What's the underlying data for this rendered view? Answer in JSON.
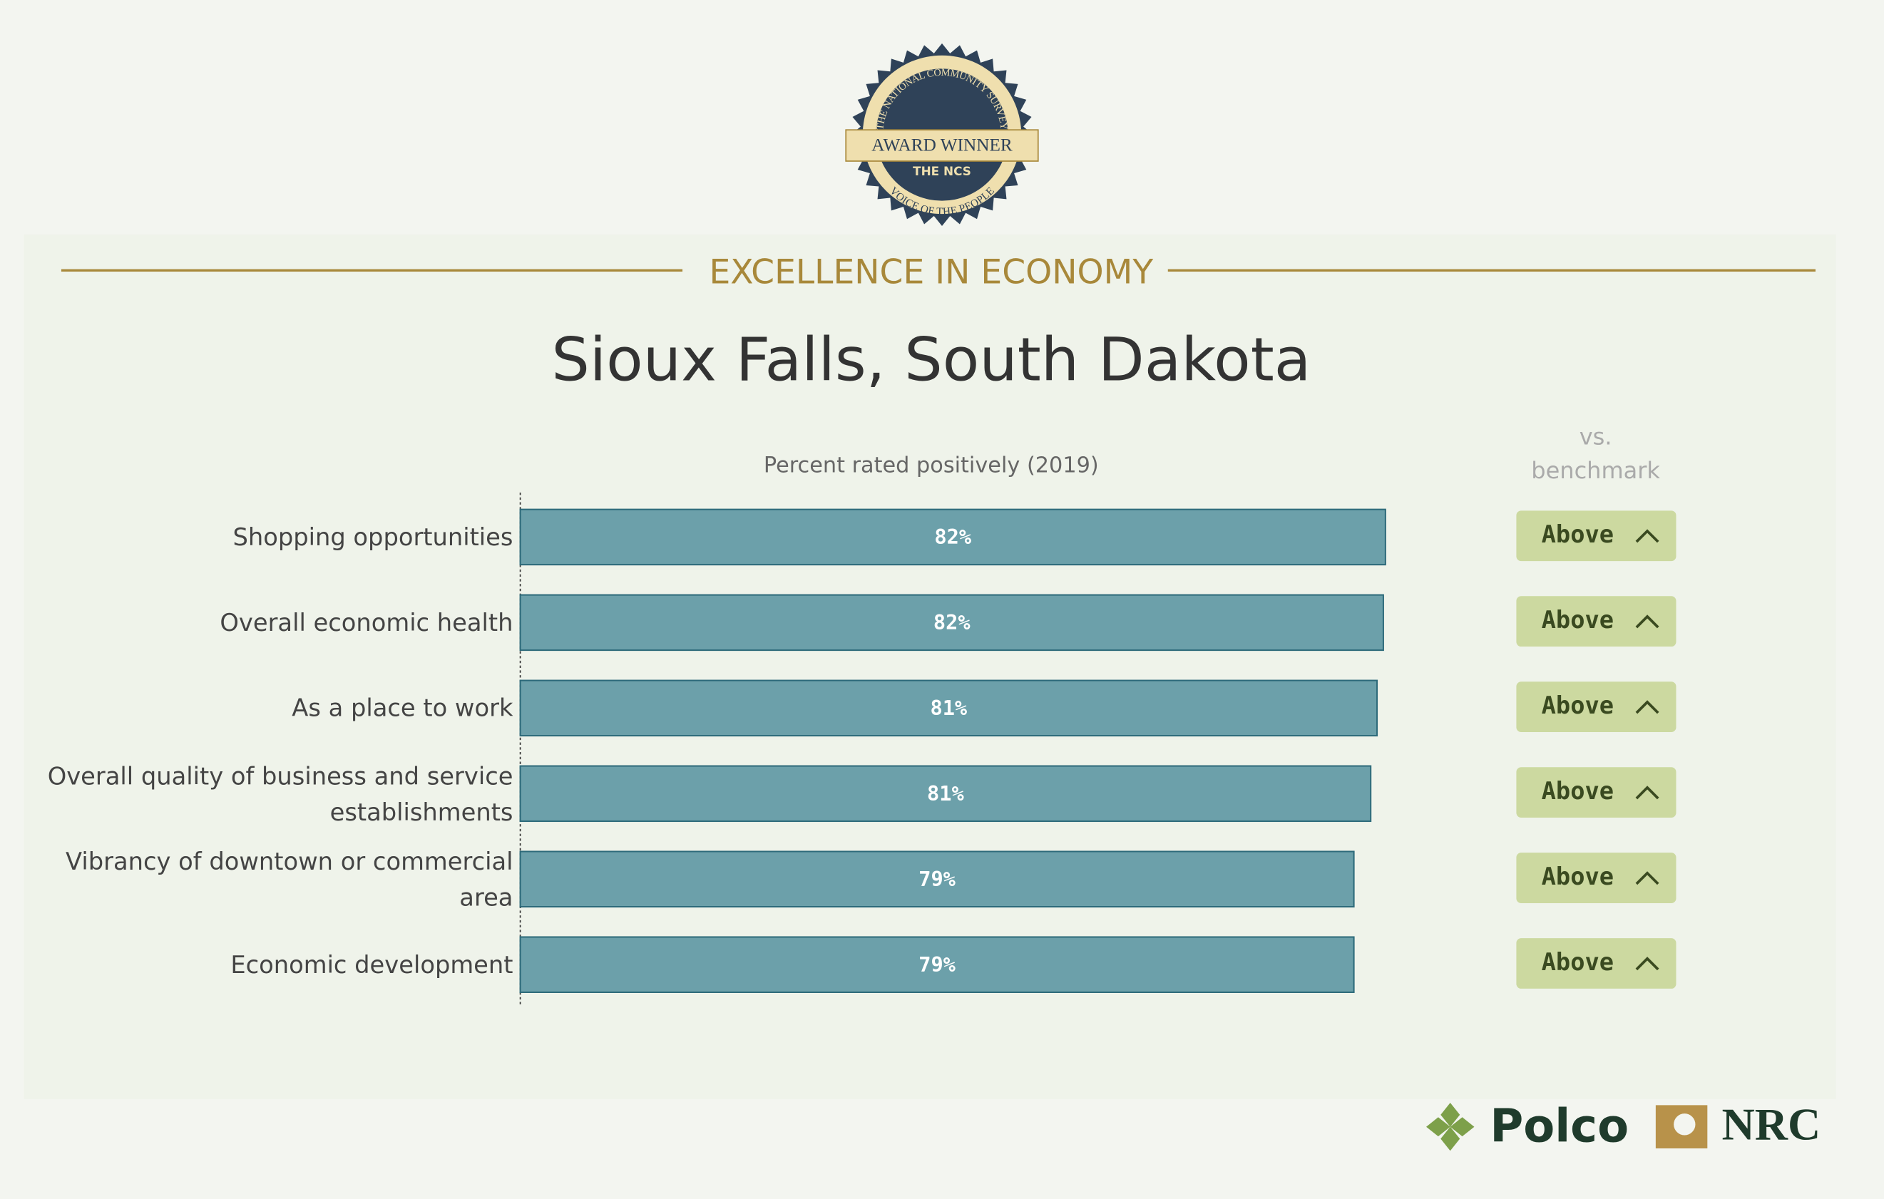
{
  "badge": {
    "arc_top": "THE NATIONAL COMMUNITY SURVEY",
    "ribbon": "AWARD WINNER",
    "brand": "THE NCS",
    "arc_bottom": "VOICE OF THE PEOPLE"
  },
  "section": "EXCELLENCE IN ECONOMY",
  "chart_data": {
    "type": "bar",
    "title": "Sioux Falls, South Dakota",
    "subtitle": "Percent rated positively (2019)",
    "categories": [
      "Shopping opportunities",
      "Overall economic health",
      "As a place to work",
      "Overall quality of business and service establishments",
      "Vibrancy of downtown or commercial area",
      "Economic development"
    ],
    "values": [
      82.2,
      82.0,
      81.4,
      80.8,
      79.2,
      79.2
    ],
    "value_labels": [
      "82%",
      "82%",
      "81%",
      "81%",
      "79%",
      "79%"
    ],
    "xlim": [
      0,
      100
    ],
    "color": "#6ca0aa",
    "benchmark_title": "vs. benchmark",
    "benchmark": [
      "Above",
      "Above",
      "Above",
      "Above",
      "Above",
      "Above"
    ]
  },
  "footer": {
    "logo_left": "Polco",
    "logo_right": "NRC"
  }
}
